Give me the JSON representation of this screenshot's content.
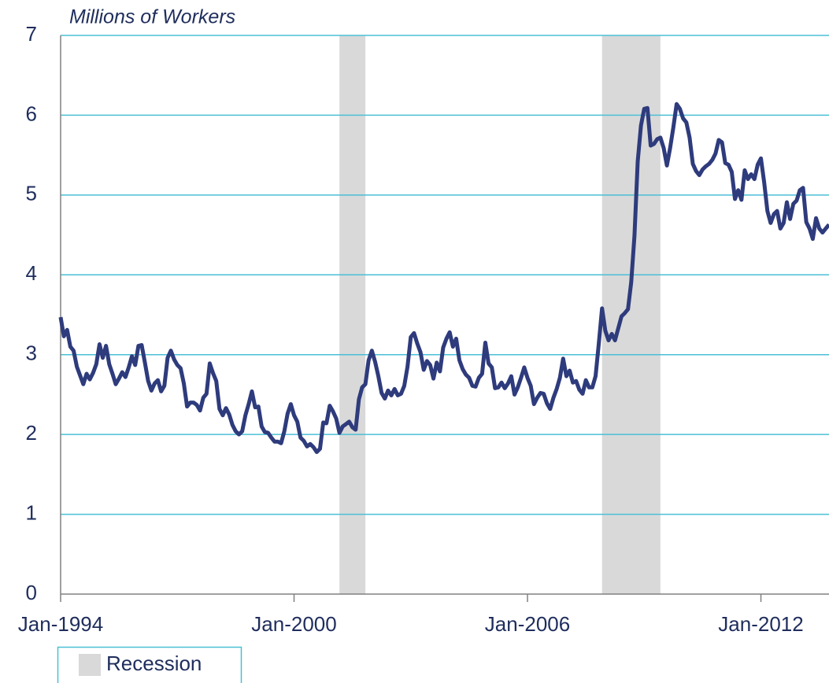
{
  "chart_data": {
    "type": "line",
    "y_axis_label": "Millions of Workers",
    "color": "#2e3b7c",
    "x": [
      "1994-01",
      "1994-02",
      "1994-03",
      "1994-04",
      "1994-05",
      "1994-06",
      "1994-07",
      "1994-08",
      "1994-09",
      "1994-10",
      "1994-11",
      "1994-12",
      "1995-01",
      "1995-02",
      "1995-03",
      "1995-04",
      "1995-05",
      "1995-06",
      "1995-07",
      "1995-08",
      "1995-09",
      "1995-10",
      "1995-11",
      "1995-12",
      "1996-01",
      "1996-02",
      "1996-03",
      "1996-04",
      "1996-05",
      "1996-06",
      "1996-07",
      "1996-08",
      "1996-09",
      "1996-10",
      "1996-11",
      "1996-12",
      "1997-01",
      "1997-02",
      "1997-03",
      "1997-04",
      "1997-05",
      "1997-06",
      "1997-07",
      "1997-08",
      "1997-09",
      "1997-10",
      "1997-11",
      "1997-12",
      "1998-01",
      "1998-02",
      "1998-03",
      "1998-04",
      "1998-05",
      "1998-06",
      "1998-07",
      "1998-08",
      "1998-09",
      "1998-10",
      "1998-11",
      "1998-12",
      "1999-01",
      "1999-02",
      "1999-03",
      "1999-04",
      "1999-05",
      "1999-06",
      "1999-07",
      "1999-08",
      "1999-09",
      "1999-10",
      "1999-11",
      "1999-12",
      "2000-01",
      "2000-02",
      "2000-03",
      "2000-04",
      "2000-05",
      "2000-06",
      "2000-07",
      "2000-08",
      "2000-09",
      "2000-10",
      "2000-11",
      "2000-12",
      "2001-01",
      "2001-02",
      "2001-03",
      "2001-04",
      "2001-05",
      "2001-06",
      "2001-07",
      "2001-08",
      "2001-09",
      "2001-10",
      "2001-11",
      "2001-12",
      "2002-01",
      "2002-02",
      "2002-03",
      "2002-04",
      "2002-05",
      "2002-06",
      "2002-07",
      "2002-08",
      "2002-09",
      "2002-10",
      "2002-11",
      "2002-12",
      "2003-01",
      "2003-02",
      "2003-03",
      "2003-04",
      "2003-05",
      "2003-06",
      "2003-07",
      "2003-08",
      "2003-09",
      "2003-10",
      "2003-11",
      "2003-12",
      "2004-01",
      "2004-02",
      "2004-03",
      "2004-04",
      "2004-05",
      "2004-06",
      "2004-07",
      "2004-08",
      "2004-09",
      "2004-10",
      "2004-11",
      "2004-12",
      "2005-01",
      "2005-02",
      "2005-03",
      "2005-04",
      "2005-05",
      "2005-06",
      "2005-07",
      "2005-08",
      "2005-09",
      "2005-10",
      "2005-11",
      "2005-12",
      "2006-01",
      "2006-02",
      "2006-03",
      "2006-04",
      "2006-05",
      "2006-06",
      "2006-07",
      "2006-08",
      "2006-09",
      "2006-10",
      "2006-11",
      "2006-12",
      "2007-01",
      "2007-02",
      "2007-03",
      "2007-04",
      "2007-05",
      "2007-06",
      "2007-07",
      "2007-08",
      "2007-09",
      "2007-10",
      "2007-11",
      "2007-12",
      "2008-01",
      "2008-02",
      "2008-03",
      "2008-04",
      "2008-05",
      "2008-06",
      "2008-07",
      "2008-08",
      "2008-09",
      "2008-10",
      "2008-11",
      "2008-12",
      "2009-01",
      "2009-02",
      "2009-03",
      "2009-04",
      "2009-05",
      "2009-06",
      "2009-07",
      "2009-08",
      "2009-09",
      "2009-10",
      "2009-11",
      "2009-12",
      "2010-01",
      "2010-02",
      "2010-03",
      "2010-04",
      "2010-05",
      "2010-06",
      "2010-07",
      "2010-08",
      "2010-09",
      "2010-10",
      "2010-11",
      "2010-12",
      "2011-01",
      "2011-02",
      "2011-03",
      "2011-04",
      "2011-05",
      "2011-06",
      "2011-07",
      "2011-08",
      "2011-09",
      "2011-10",
      "2011-11",
      "2011-12",
      "2012-01",
      "2012-02",
      "2012-03",
      "2012-04",
      "2012-05",
      "2012-06",
      "2012-07",
      "2012-08",
      "2012-09",
      "2012-10",
      "2012-11",
      "2012-12",
      "2013-01",
      "2013-02",
      "2013-03",
      "2013-04",
      "2013-05",
      "2013-06",
      "2013-07",
      "2013-08",
      "2013-09",
      "2013-10"
    ],
    "values": [
      3.47,
      3.23,
      3.31,
      3.1,
      3.05,
      2.85,
      2.74,
      2.63,
      2.76,
      2.69,
      2.77,
      2.88,
      3.13,
      2.96,
      3.11,
      2.88,
      2.76,
      2.63,
      2.7,
      2.78,
      2.72,
      2.84,
      2.98,
      2.87,
      3.11,
      3.12,
      2.9,
      2.67,
      2.55,
      2.64,
      2.68,
      2.54,
      2.61,
      2.96,
      3.05,
      2.94,
      2.87,
      2.83,
      2.64,
      2.35,
      2.4,
      2.4,
      2.37,
      2.3,
      2.46,
      2.51,
      2.89,
      2.77,
      2.67,
      2.32,
      2.24,
      2.33,
      2.25,
      2.12,
      2.04,
      2.0,
      2.04,
      2.24,
      2.38,
      2.54,
      2.34,
      2.35,
      2.1,
      2.03,
      2.02,
      1.96,
      1.91,
      1.91,
      1.89,
      2.04,
      2.26,
      2.38,
      2.24,
      2.16,
      1.96,
      1.92,
      1.85,
      1.88,
      1.84,
      1.78,
      1.82,
      2.15,
      2.14,
      2.36,
      2.29,
      2.2,
      2.02,
      2.1,
      2.13,
      2.16,
      2.09,
      2.06,
      2.44,
      2.59,
      2.63,
      2.93,
      3.05,
      2.91,
      2.73,
      2.52,
      2.45,
      2.55,
      2.49,
      2.57,
      2.49,
      2.51,
      2.61,
      2.85,
      3.22,
      3.27,
      3.14,
      3.03,
      2.81,
      2.92,
      2.87,
      2.7,
      2.9,
      2.79,
      3.09,
      3.2,
      3.28,
      3.1,
      3.2,
      2.93,
      2.82,
      2.75,
      2.71,
      2.61,
      2.6,
      2.71,
      2.76,
      3.15,
      2.89,
      2.84,
      2.58,
      2.59,
      2.65,
      2.58,
      2.64,
      2.73,
      2.5,
      2.59,
      2.71,
      2.84,
      2.71,
      2.61,
      2.38,
      2.46,
      2.52,
      2.51,
      2.39,
      2.32,
      2.46,
      2.57,
      2.71,
      2.95,
      2.73,
      2.8,
      2.65,
      2.67,
      2.56,
      2.51,
      2.68,
      2.59,
      2.59,
      2.73,
      3.14,
      3.58,
      3.3,
      3.18,
      3.26,
      3.18,
      3.33,
      3.48,
      3.52,
      3.57,
      3.91,
      4.49,
      5.42,
      5.87,
      6.08,
      6.09,
      5.62,
      5.64,
      5.7,
      5.72,
      5.59,
      5.37,
      5.59,
      5.85,
      6.14,
      6.08,
      5.96,
      5.91,
      5.72,
      5.39,
      5.3,
      5.25,
      5.32,
      5.36,
      5.39,
      5.44,
      5.52,
      5.69,
      5.66,
      5.4,
      5.38,
      5.29,
      4.95,
      5.06,
      4.94,
      5.31,
      5.2,
      5.26,
      5.2,
      5.38,
      5.46,
      5.16,
      4.8,
      4.65,
      4.76,
      4.8,
      4.58,
      4.65,
      4.91,
      4.7,
      4.89,
      4.93,
      5.06,
      5.09,
      4.66,
      4.58,
      4.45,
      4.71,
      4.58,
      4.53,
      4.58,
      4.63
    ],
    "recession_label": "Recession",
    "recession_color": "#d9d9d9",
    "recessions": [
      {
        "start": "2001-03",
        "end": "2001-11"
      },
      {
        "start": "2007-12",
        "end": "2009-06"
      }
    ],
    "xlim": [
      "1994-01",
      "2013-10"
    ],
    "xticks": [
      {
        "value": "1994-01",
        "label": "Jan-1994"
      },
      {
        "value": "2000-01",
        "label": "Jan-2000"
      },
      {
        "value": "2006-01",
        "label": "Jan-2006"
      },
      {
        "value": "2012-01",
        "label": "Jan-2012"
      }
    ],
    "ylim": [
      0,
      7
    ],
    "yticks": [
      0,
      1,
      2,
      3,
      4,
      5,
      6,
      7
    ],
    "grid": true,
    "grid_color": "#4bbfd6"
  }
}
